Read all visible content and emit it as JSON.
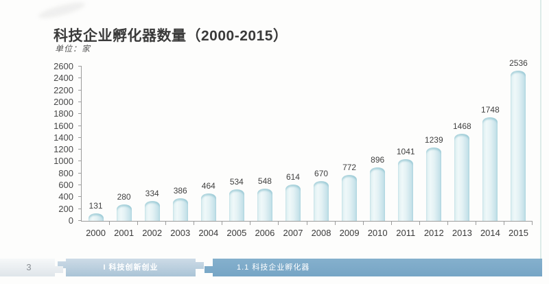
{
  "page": {
    "title": "科技企业孵化器数量（2000-2015）",
    "unit_label": "单位：家"
  },
  "chart_data": {
    "type": "bar",
    "title": "科技企业孵化器数量（2000-2015）",
    "unit": "家",
    "categories": [
      "2000",
      "2001",
      "2002",
      "2003",
      "2004",
      "2005",
      "2006",
      "2007",
      "2008",
      "2009",
      "2010",
      "2011",
      "2012",
      "2013",
      "2014",
      "2015"
    ],
    "values": [
      131,
      280,
      334,
      386,
      464,
      534,
      548,
      614,
      670,
      772,
      896,
      1041,
      1239,
      1468,
      1748,
      2536
    ],
    "xlabel": "",
    "ylabel": "单位：家",
    "ylim": [
      0,
      2600
    ],
    "yticks": [
      0,
      200,
      400,
      600,
      800,
      1000,
      1200,
      1400,
      1600,
      1800,
      2000,
      2200,
      2400,
      2600
    ],
    "grid": false,
    "legend": "none",
    "data_labels": true,
    "bar_color_light": "#eff8f9",
    "bar_color_dark": "#bddde6"
  },
  "footer": {
    "page_number": "3",
    "section_label": "I 科技创新创业",
    "subsection_label": "1.1 科技企业孵化器"
  },
  "colors": {
    "title_text": "#3a3a3a",
    "axis_text": "#484848",
    "axis_line": "#9b9b9b",
    "footer_page_bg": "#e8edf1",
    "footer_section_bg": "#b6cadb",
    "footer_subsection_bg": "#7fabca",
    "footer_text": "#ffffff"
  }
}
